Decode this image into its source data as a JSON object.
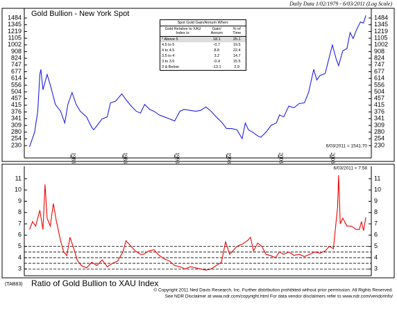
{
  "header": {
    "date_range": "Daily Data 1/02/1979 - 6/03/2011 (Log Scale)"
  },
  "chart_data": [
    {
      "type": "line",
      "title": "Gold Bullion - New York Spot",
      "log_scale": true,
      "xlim": [
        1978.5,
        2011.95
      ],
      "ylim": [
        192,
        1710
      ],
      "xticks": [
        1983,
        1988,
        1993,
        1998,
        2003,
        2008
      ],
      "yticks": [
        230,
        254,
        280,
        309,
        341,
        376,
        415,
        457,
        504,
        556,
        614,
        677,
        747,
        824,
        908,
        1002,
        1105,
        1219,
        1345,
        1484
      ],
      "annotation": "6/03/2011 = 1541.70",
      "series": [
        {
          "color": "#1f1fe0",
          "x": [
            1979.0,
            1979.5,
            1979.8,
            1980.0,
            1980.1,
            1980.3,
            1980.7,
            1981.0,
            1981.5,
            1982.0,
            1982.4,
            1982.7,
            1983.1,
            1983.5,
            1983.9,
            1984.5,
            1985.0,
            1985.2,
            1985.7,
            1986.0,
            1986.5,
            1986.8,
            1987.3,
            1987.9,
            1988.3,
            1988.8,
            1989.3,
            1989.7,
            1990.1,
            1990.6,
            1991.0,
            1991.5,
            1992.0,
            1992.5,
            1993.0,
            1993.5,
            1993.9,
            1994.5,
            1995.0,
            1995.5,
            1996.0,
            1996.5,
            1997.0,
            1997.5,
            1998.0,
            1998.5,
            1999.0,
            1999.5,
            1999.8,
            2000.1,
            2000.5,
            2001.0,
            2001.3,
            2001.8,
            2002.3,
            2002.8,
            2003.1,
            2003.5,
            2004.0,
            2004.5,
            2005.0,
            2005.5,
            2005.9,
            2006.4,
            2006.7,
            2007.0,
            2007.5,
            2007.9,
            2008.2,
            2008.6,
            2008.8,
            2009.2,
            2009.6,
            2009.9,
            2010.2,
            2010.5,
            2010.9,
            2011.2,
            2011.42
          ],
          "values": [
            226,
            280,
            380,
            650,
            700,
            520,
            650,
            560,
            420,
            380,
            320,
            420,
            500,
            420,
            380,
            350,
            300,
            290,
            320,
            340,
            350,
            430,
            440,
            490,
            450,
            410,
            380,
            370,
            420,
            390,
            380,
            360,
            350,
            340,
            330,
            380,
            390,
            385,
            380,
            385,
            405,
            380,
            350,
            325,
            295,
            295,
            290,
            255,
            320,
            290,
            280,
            265,
            260,
            280,
            310,
            320,
            360,
            350,
            410,
            400,
            425,
            430,
            500,
            700,
            600,
            640,
            660,
            840,
            1000,
            800,
            740,
            920,
            950,
            1200,
            1100,
            1240,
            1400,
            1380,
            1541.7
          ]
        }
      ],
      "table": {
        "title": "Spot Gold Gain/Annum When:",
        "columns": [
          "Gold Relative to XAU Index is:",
          "Gain/ Annum",
          "% of Time"
        ],
        "rows": [
          [
            "* Above 5",
            18.1,
            25.1
          ],
          [
            "4.5 to 5",
            -0.7,
            19.5
          ],
          [
            "4 to 4.5",
            8.8,
            22.4
          ],
          [
            "3.5 to 4",
            3.2,
            14.7
          ],
          [
            "3 to 3.5",
            -0.4,
            15.5
          ],
          [
            "3 & Below",
            -13.1,
            2.9
          ]
        ]
      }
    },
    {
      "type": "line",
      "title": "Ratio of Gold Bullion to XAU Index",
      "code": "(TAB83)",
      "xlim": [
        1978.5,
        2011.95
      ],
      "ylim": [
        2.4,
        12.1
      ],
      "yticks": [
        3,
        4,
        5,
        6,
        7,
        8,
        9,
        10,
        11
      ],
      "ref_lines": [
        3,
        3.5,
        4,
        4.5,
        5
      ],
      "annotation": "6/03/2011 = 7.58",
      "series": [
        {
          "color": "#ee0000",
          "x": [
            1979.0,
            1979.3,
            1979.6,
            1980.0,
            1980.3,
            1980.5,
            1980.7,
            1981.0,
            1981.3,
            1981.6,
            1982.0,
            1982.3,
            1982.6,
            1982.9,
            1983.2,
            1983.6,
            1984.0,
            1984.5,
            1985.0,
            1985.5,
            1986.0,
            1986.5,
            1987.0,
            1987.5,
            1988.0,
            1988.3,
            1988.8,
            1989.2,
            1989.7,
            1990.0,
            1990.5,
            1991.0,
            1991.5,
            1992.0,
            1992.5,
            1993.0,
            1993.5,
            1994.0,
            1994.5,
            1995.0,
            1995.5,
            1996.0,
            1996.5,
            1997.0,
            1997.5,
            1997.9,
            1998.3,
            1998.8,
            1999.0,
            1999.5,
            2000.0,
            2000.3,
            2000.6,
            2001.0,
            2001.4,
            2001.8,
            2002.2,
            2002.7,
            2003.1,
            2003.5,
            2004.0,
            2004.5,
            2005.0,
            2005.5,
            2006.0,
            2006.5,
            2007.0,
            2007.5,
            2007.9,
            2008.3,
            2008.7,
            2008.8,
            2008.95,
            2009.2,
            2009.6,
            2010.0,
            2010.5,
            2010.8,
            2011.0,
            2011.2,
            2011.42
          ],
          "values": [
            6.5,
            7.2,
            6.8,
            8.2,
            6.5,
            10.5,
            7.5,
            6.8,
            8.8,
            7.2,
            5.5,
            4.5,
            4.2,
            5.8,
            5.0,
            3.8,
            3.3,
            3.1,
            3.6,
            3.3,
            3.8,
            3.2,
            3.5,
            3.7,
            4.5,
            5.5,
            5.0,
            4.6,
            4.3,
            4.3,
            4.6,
            4.7,
            4.2,
            3.9,
            3.7,
            3.3,
            3.2,
            3.0,
            3.2,
            3.1,
            3.0,
            2.9,
            3.0,
            3.3,
            3.6,
            5.4,
            4.3,
            4.8,
            5.0,
            5.2,
            5.5,
            5.8,
            4.6,
            5.3,
            5.0,
            4.3,
            4.2,
            4.0,
            4.5,
            4.3,
            4.5,
            4.2,
            4.3,
            4.1,
            4.3,
            4.5,
            4.4,
            4.6,
            5.0,
            4.8,
            8.5,
            11.3,
            7.0,
            7.5,
            6.8,
            6.8,
            6.5,
            6.5,
            7.2,
            6.4,
            7.58
          ]
        }
      ]
    }
  ],
  "footer": {
    "line1": "© Copyright 2011 Ned Davis Research, Inc. Further distribution prohibited without prior permission. All Rights Reserved.",
    "line2": "See NDR Disclaimer at www.ndr.com/copyright.html For data vendor disclaimers refer to www.ndr.com/vendorinfo/"
  }
}
